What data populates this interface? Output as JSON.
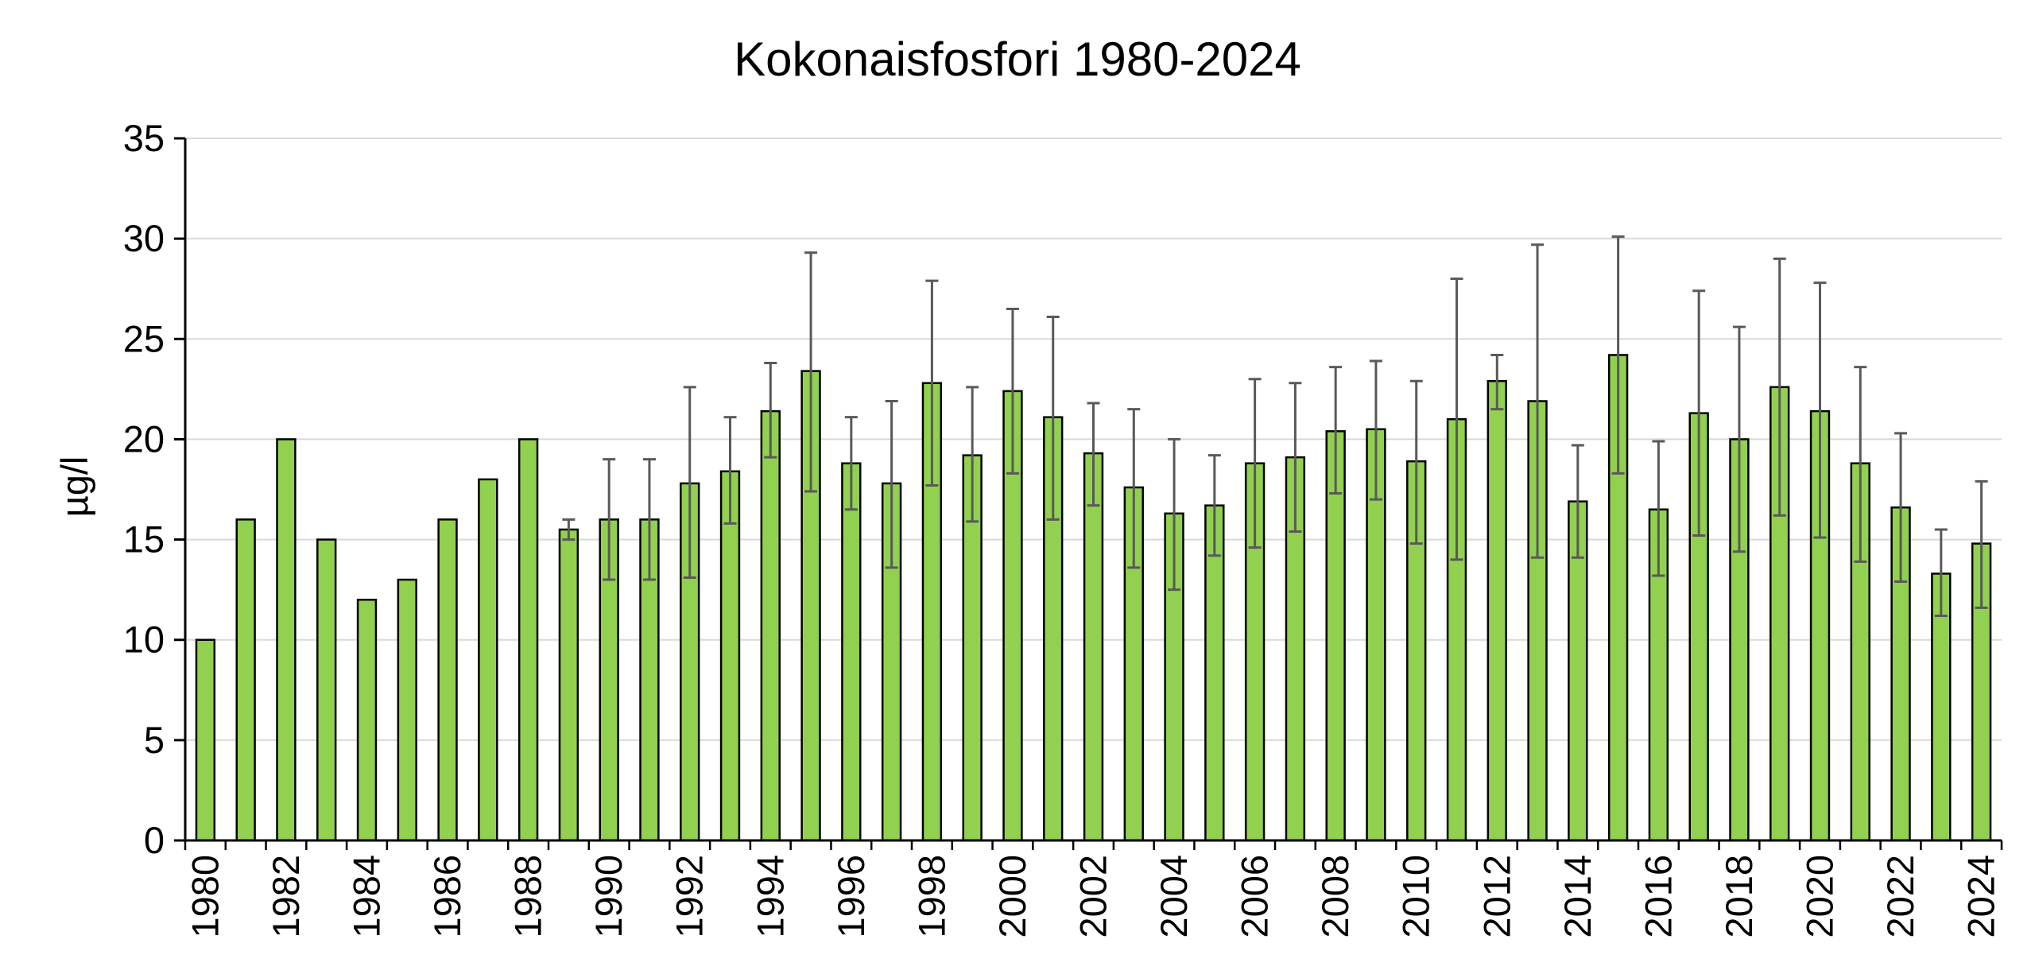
{
  "chart_data": {
    "type": "bar",
    "title": "Kokonaisfosfori 1980-2024",
    "xlabel": "",
    "ylabel": "µg/l",
    "ylim": [
      0,
      35
    ],
    "yticks": [
      0,
      5,
      10,
      15,
      20,
      25,
      30,
      35
    ],
    "grid": true,
    "legend": "none",
    "bar_color": "#92d050",
    "bar_edge_color": "#000000",
    "error_bar_color": "#595959",
    "categories": [
      1980,
      1981,
      1982,
      1983,
      1984,
      1985,
      1986,
      1987,
      1988,
      1989,
      1990,
      1991,
      1992,
      1993,
      1994,
      1995,
      1996,
      1997,
      1998,
      1999,
      2000,
      2001,
      2002,
      2003,
      2004,
      2005,
      2006,
      2007,
      2008,
      2009,
      2010,
      2011,
      2012,
      2013,
      2014,
      2015,
      2016,
      2017,
      2018,
      2019,
      2020,
      2021,
      2022,
      2023,
      2024
    ],
    "x_tick_labels": [
      "1980",
      "",
      "1982",
      "",
      "1984",
      "",
      "1986",
      "",
      "1988",
      "",
      "1990",
      "",
      "1992",
      "",
      "1994",
      "",
      "1996",
      "",
      "1998",
      "",
      "2000",
      "",
      "2002",
      "",
      "2004",
      "",
      "2006",
      "",
      "2008",
      "",
      "2010",
      "",
      "2012",
      "",
      "2014",
      "",
      "2016",
      "",
      "2018",
      "",
      "2020",
      "",
      "2022",
      "",
      "2024"
    ],
    "values": [
      10,
      16,
      20,
      15,
      12,
      13,
      16,
      18,
      20,
      15.5,
      16,
      16,
      17.8,
      18.4,
      21.4,
      23.4,
      18.8,
      17.8,
      22.8,
      19.2,
      22.4,
      21.1,
      19.3,
      17.6,
      16.3,
      16.7,
      18.8,
      19.1,
      20.4,
      20.5,
      18.9,
      21.0,
      22.9,
      21.9,
      16.9,
      24.2,
      16.5,
      21.3,
      20.0,
      22.6,
      21.4,
      18.8,
      16.6,
      13.3,
      14.8
    ],
    "error_low": [
      null,
      null,
      null,
      null,
      null,
      null,
      null,
      null,
      null,
      15.0,
      13.0,
      13.0,
      13.1,
      15.8,
      19.1,
      17.4,
      16.5,
      13.6,
      17.7,
      15.9,
      18.3,
      16.0,
      16.7,
      13.6,
      12.5,
      14.2,
      14.6,
      15.4,
      17.3,
      17.0,
      14.8,
      14.0,
      21.5,
      14.1,
      14.1,
      18.3,
      13.2,
      15.2,
      14.4,
      16.2,
      15.1,
      13.9,
      12.9,
      11.2,
      11.6
    ],
    "error_high": [
      null,
      null,
      null,
      null,
      null,
      null,
      null,
      null,
      null,
      16.0,
      19.0,
      19.0,
      22.6,
      21.1,
      23.8,
      29.3,
      21.1,
      21.9,
      27.9,
      22.6,
      26.5,
      26.1,
      21.8,
      21.5,
      20.0,
      19.2,
      23.0,
      22.8,
      23.6,
      23.9,
      22.9,
      28.0,
      24.2,
      29.7,
      19.7,
      30.1,
      19.9,
      27.4,
      25.6,
      29.0,
      27.8,
      23.6,
      20.3,
      15.5,
      17.9
    ]
  }
}
